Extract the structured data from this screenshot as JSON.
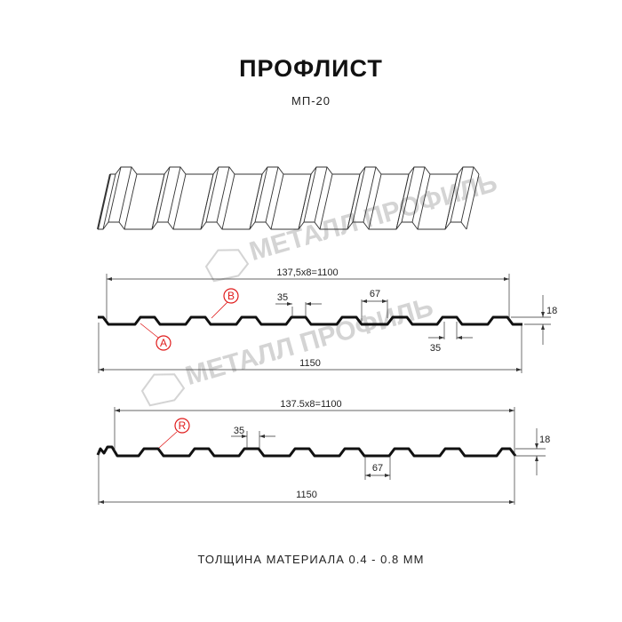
{
  "title": "ПРОФЛИСТ",
  "subtitle": "МП-20",
  "footer": "ТОЛЩИНА МАТЕРИАЛА 0.4 - 0.8 ММ",
  "watermark": "МЕТАЛЛ ПРОФИЛЬ",
  "colors": {
    "profile": "#111111",
    "callout": "#e01b1b",
    "watermark": "#d4d4d4"
  },
  "profile_1": {
    "pitch_label": "137,5x8=1100",
    "width_label": "1150",
    "crest_label": "35",
    "trough_label": "35",
    "gap_label": "67",
    "height_label": "18",
    "callouts": [
      "B",
      "A"
    ]
  },
  "profile_2": {
    "pitch_label": "137.5x8=1100",
    "width_label": "1150",
    "crest_label": "35",
    "gap_label": "67",
    "height_label": "18",
    "callouts": [
      "R"
    ]
  }
}
